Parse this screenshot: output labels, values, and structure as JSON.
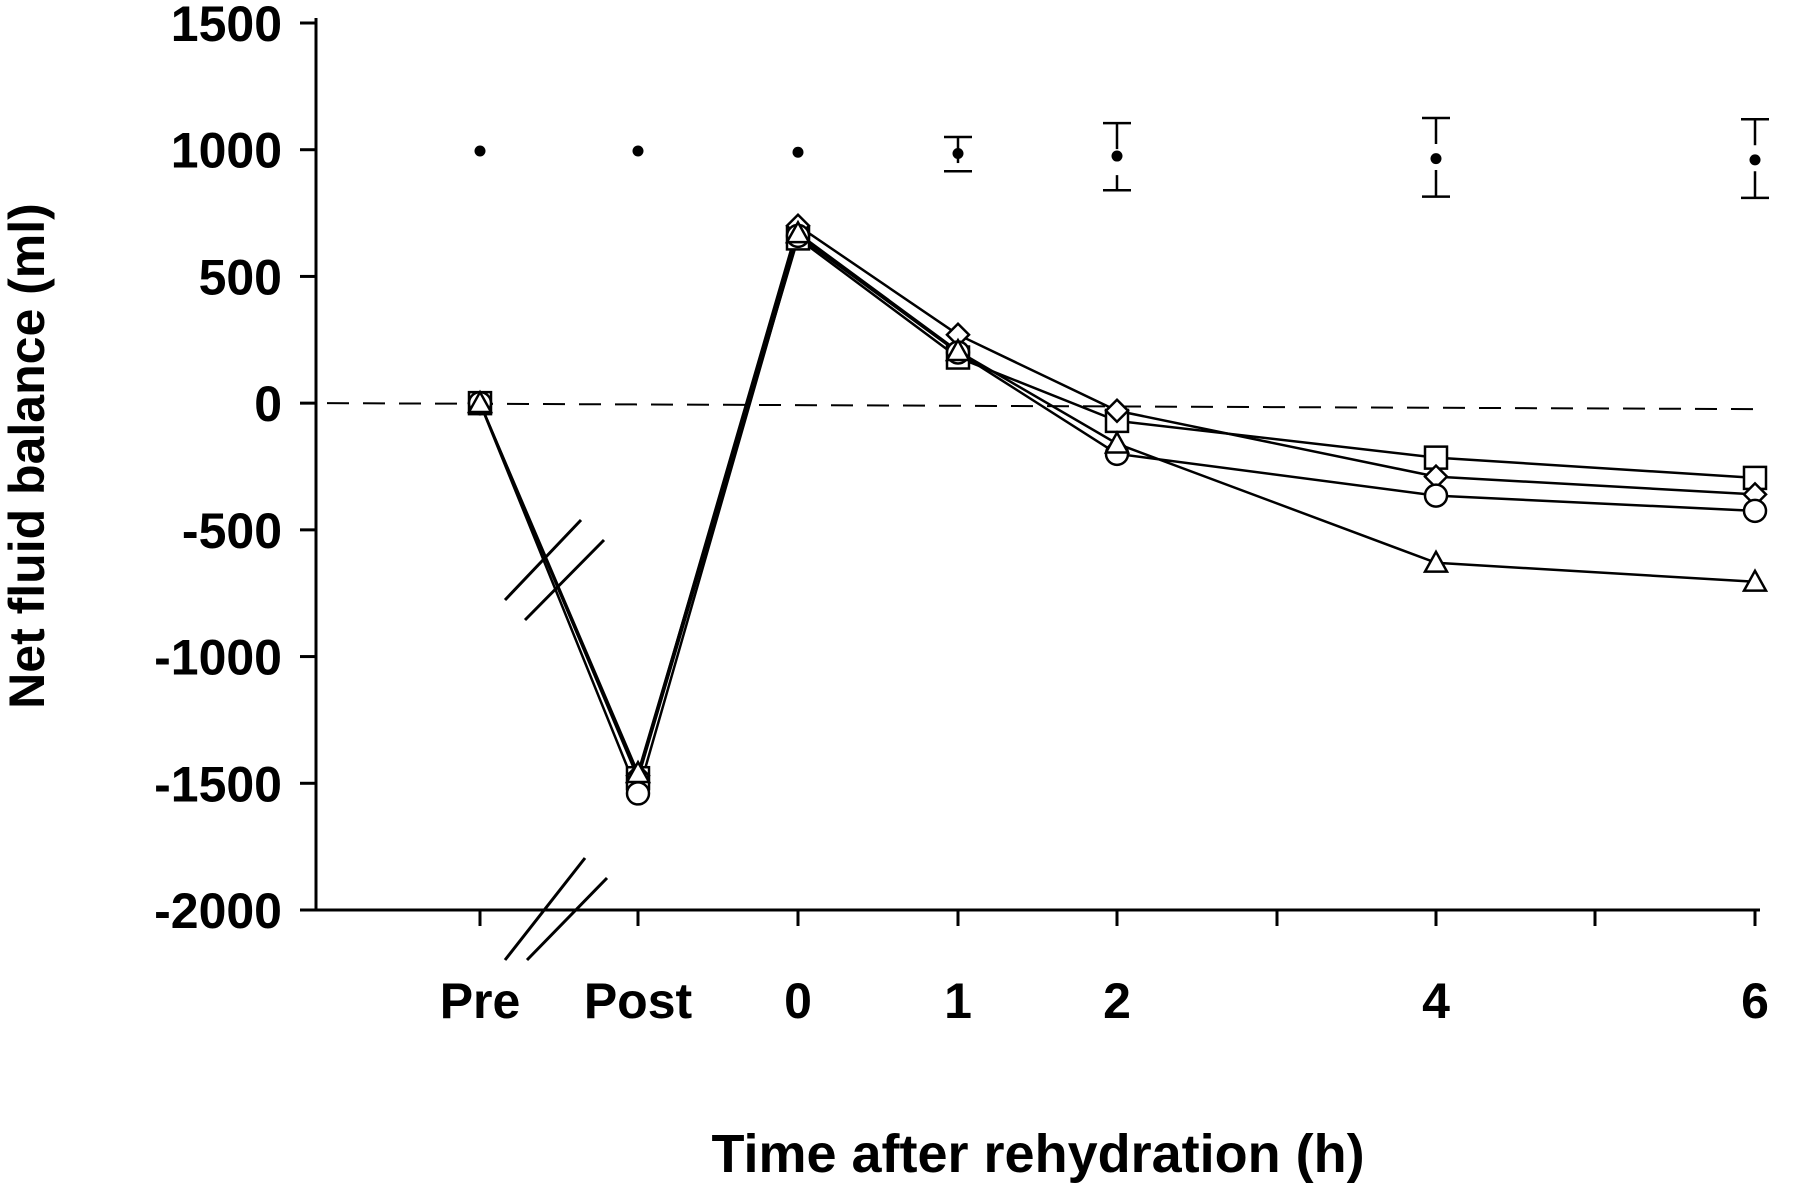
{
  "chart_data": {
    "type": "line",
    "title": "",
    "xlabel": "Time after rehydration (h)",
    "ylabel": "Net fluid balance (ml)",
    "ylim": [
      -2000,
      1500
    ],
    "yticks": [
      1500,
      1000,
      500,
      0,
      -500,
      -1000,
      -1500,
      -2000
    ],
    "yticklabels": [
      "1500",
      "1000",
      "500",
      "0",
      "-500",
      "-1000",
      "-1500",
      "-2000"
    ],
    "x_positions": [
      "Pre",
      "Post",
      "0",
      "1",
      "2",
      "3",
      "4",
      "5",
      "6"
    ],
    "xticklabels": [
      {
        "at": "Pre",
        "label": "Pre"
      },
      {
        "at": "Post",
        "label": "Post"
      },
      {
        "at": "0",
        "label": "0"
      },
      {
        "at": "1",
        "label": "1"
      },
      {
        "at": "2",
        "label": "2"
      },
      {
        "at": "4",
        "label": "4"
      },
      {
        "at": "6",
        "label": "6"
      }
    ],
    "reference_line": {
      "y": 0,
      "style": "dashed"
    },
    "axis_break": true,
    "grid": false,
    "legend": "none",
    "series": [
      {
        "marker": "square",
        "x": [
          "Pre",
          "Post",
          "0",
          "1",
          "2",
          "4",
          "6"
        ],
        "values": [
          0,
          -1480,
          650,
          180,
          -70,
          -215,
          -295
        ]
      },
      {
        "marker": "diamond",
        "x": [
          "Pre",
          "Post",
          "0",
          "1",
          "2",
          "4",
          "6"
        ],
        "values": [
          0,
          -1470,
          700,
          270,
          -30,
          -290,
          -360
        ]
      },
      {
        "marker": "circle",
        "x": [
          "Pre",
          "Post",
          "0",
          "1",
          "2",
          "4",
          "6"
        ],
        "values": [
          0,
          -1540,
          660,
          200,
          -200,
          -365,
          -425
        ]
      },
      {
        "marker": "triangle",
        "x": [
          "Pre",
          "Post",
          "0",
          "1",
          "2",
          "4",
          "6"
        ],
        "values": [
          0,
          -1460,
          670,
          205,
          -160,
          -630,
          -705
        ]
      }
    ],
    "variability_markers": [
      {
        "x": "Pre",
        "mean": 995,
        "low": null,
        "high": null
      },
      {
        "x": "Post",
        "mean": 995,
        "low": null,
        "high": null
      },
      {
        "x": "0",
        "mean": 990,
        "low": null,
        "high": null
      },
      {
        "x": "1",
        "mean": 985,
        "low": 915,
        "high": 1050
      },
      {
        "x": "2",
        "mean": 975,
        "low": 840,
        "high": 1105
      },
      {
        "x": "4",
        "mean": 965,
        "low": 815,
        "high": 1125
      },
      {
        "x": "6",
        "mean": 960,
        "low": 810,
        "high": 1120
      }
    ]
  }
}
